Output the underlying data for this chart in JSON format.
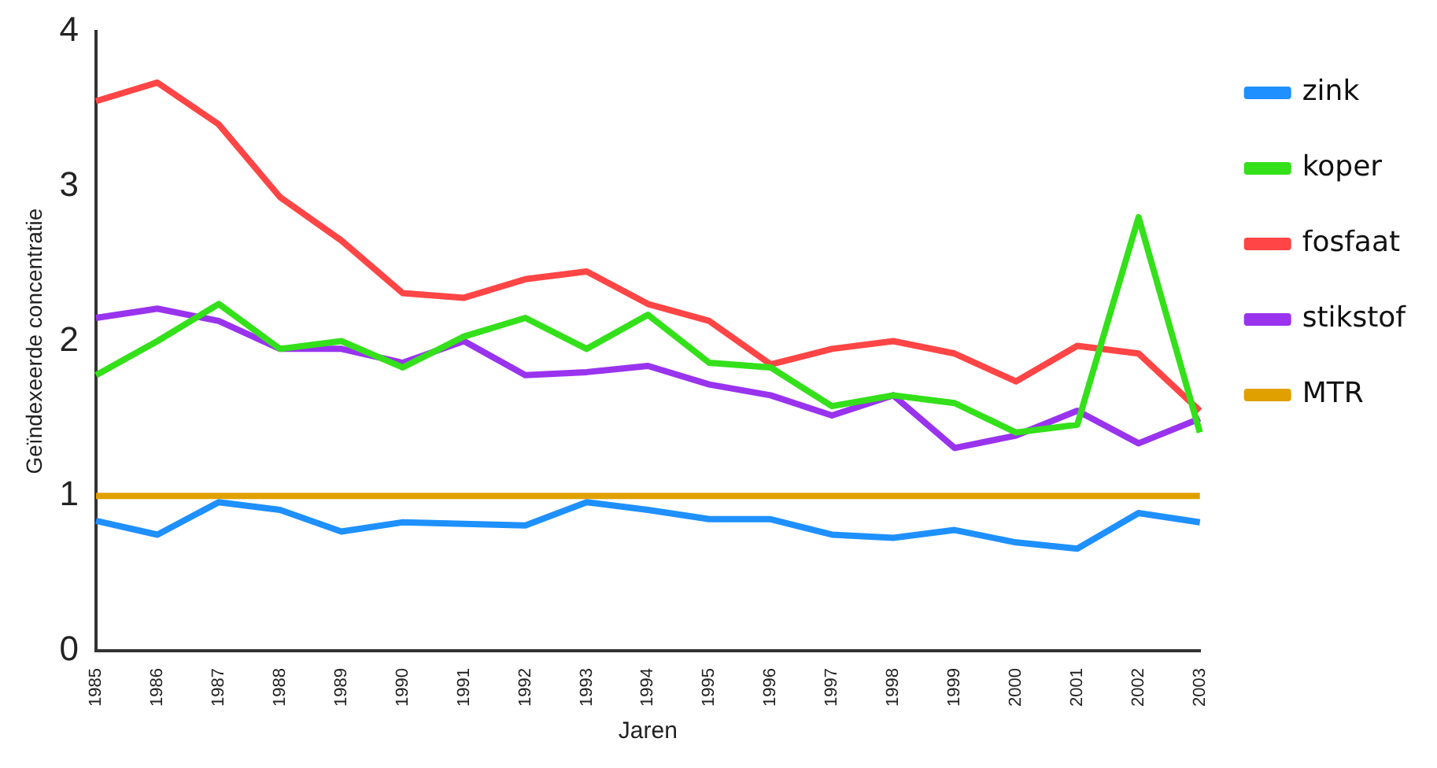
{
  "chart_data": {
    "type": "line",
    "xlabel": "Jaren",
    "ylabel": "Geïndexeerde concentratie",
    "categories": [
      "1985",
      "1986",
      "1987",
      "1988",
      "1989",
      "1990",
      "1991",
      "1992",
      "1993",
      "1994",
      "1995",
      "1996",
      "1997",
      "1998",
      "1999",
      "2000",
      "2001",
      "2002",
      "2003"
    ],
    "series": [
      {
        "name": "zink",
        "color": "#1e90ff",
        "values": [
          0.84,
          0.75,
          0.96,
          0.91,
          0.77,
          0.83,
          0.82,
          0.81,
          0.96,
          0.91,
          0.85,
          0.85,
          0.75,
          0.73,
          0.78,
          0.7,
          0.66,
          0.89,
          0.83
        ]
      },
      {
        "name": "koper",
        "color": "#33e01a",
        "values": [
          1.78,
          2.0,
          2.24,
          1.95,
          2.0,
          1.83,
          2.03,
          2.15,
          1.95,
          2.17,
          1.86,
          1.83,
          1.58,
          1.65,
          1.6,
          1.41,
          1.46,
          2.8,
          1.41
        ]
      },
      {
        "name": "fosfaat",
        "color": "#ff4545",
        "values": [
          3.55,
          3.67,
          3.4,
          2.93,
          2.65,
          2.31,
          2.28,
          2.4,
          2.45,
          2.24,
          2.13,
          1.85,
          1.95,
          2.0,
          1.92,
          1.74,
          1.97,
          1.92,
          1.55
        ]
      },
      {
        "name": "stikstof",
        "color": "#9933ee",
        "values": [
          2.15,
          2.21,
          2.13,
          1.95,
          1.95,
          1.86,
          2.0,
          1.78,
          1.8,
          1.84,
          1.72,
          1.65,
          1.52,
          1.65,
          1.31,
          1.39,
          1.55,
          1.34,
          1.5
        ]
      },
      {
        "name": "MTR",
        "color": "#e0a000",
        "values": [
          1,
          1,
          1,
          1,
          1,
          1,
          1,
          1,
          1,
          1,
          1,
          1,
          1,
          1,
          1,
          1,
          1,
          1,
          1
        ]
      }
    ],
    "ylim": [
      0,
      4
    ],
    "yticks": [
      0,
      1,
      2,
      3,
      4
    ],
    "grid": false,
    "legend": "top right",
    "marker": "none",
    "line_style": "solid"
  }
}
